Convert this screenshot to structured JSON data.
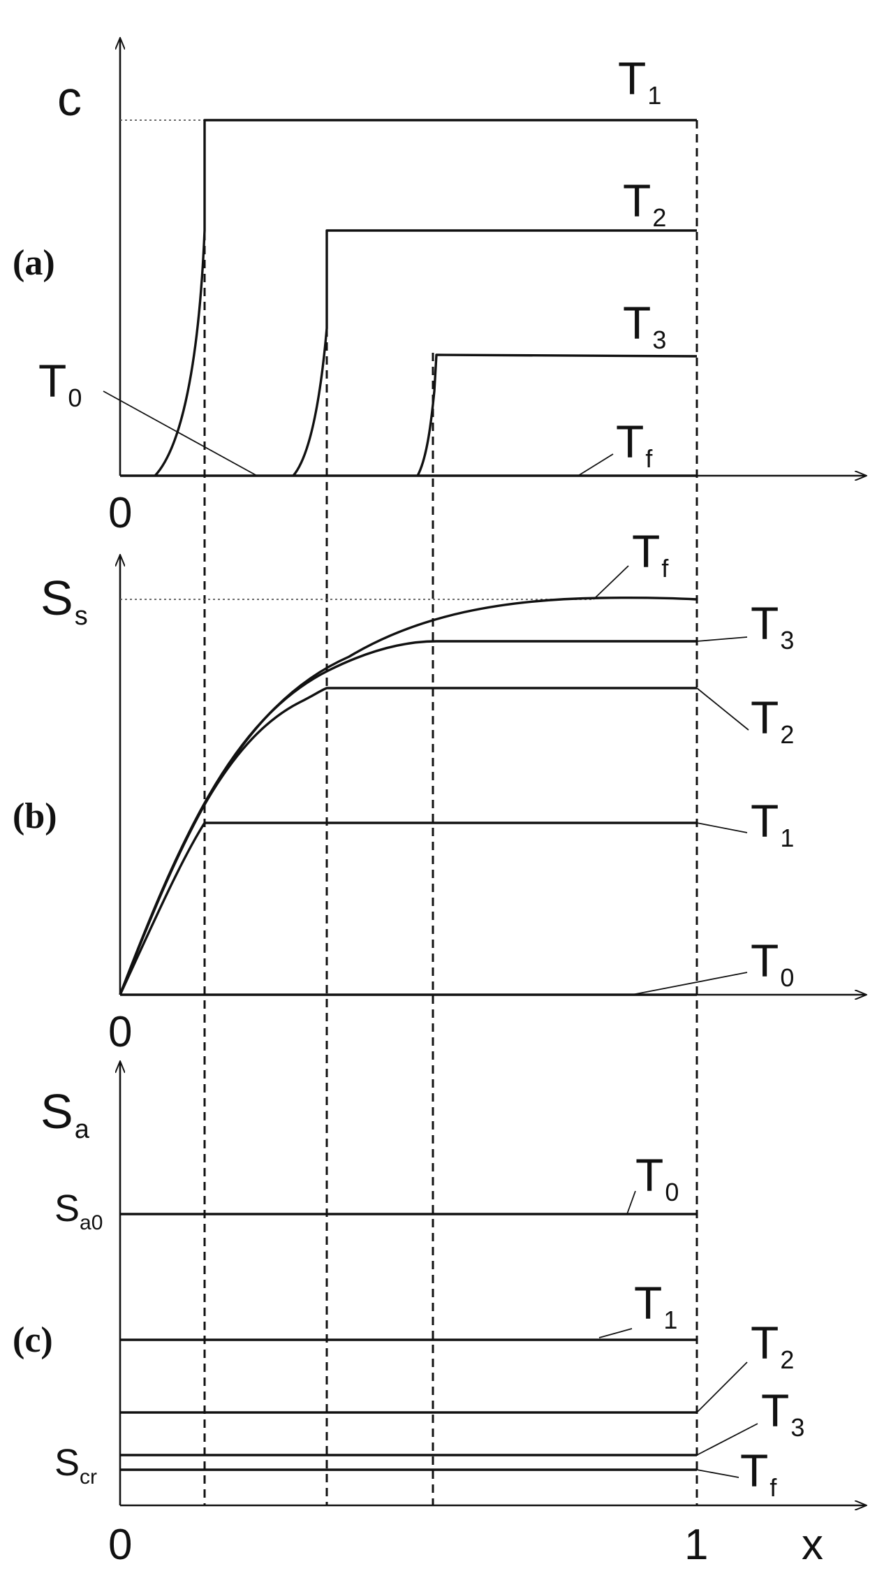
{
  "panels": {
    "a": {
      "label": "(a)",
      "y_label": "c",
      "origin": "0",
      "curves": {
        "T1": "T",
        "T1_sub": "1",
        "T2": "T",
        "T2_sub": "2",
        "T3": "T",
        "T3_sub": "3",
        "T0": "T",
        "T0_sub": "0",
        "Tf": "T",
        "Tf_sub": "f"
      }
    },
    "b": {
      "label": "(b)",
      "y_label": "S",
      "y_label_sub": "s",
      "origin": "0",
      "curves": {
        "Tf": "T",
        "Tf_sub": "f",
        "T3": "T",
        "T3_sub": "3",
        "T2": "T",
        "T2_sub": "2",
        "T1": "T",
        "T1_sub": "1",
        "T0": "T",
        "T0_sub": "0"
      }
    },
    "c": {
      "label": "(c)",
      "y_label": "S",
      "y_label_sub": "a",
      "tick_top": "S",
      "tick_top_sub": "a0",
      "tick_bottom": "S",
      "tick_bottom_sub": "cr",
      "origin": "0",
      "x_end": "1",
      "x_label": "x",
      "curves": {
        "T0": "T",
        "T0_sub": "0",
        "T1": "T",
        "T1_sub": "1",
        "T2": "T",
        "T2_sub": "2",
        "T3": "T",
        "T3_sub": "3",
        "Tf": "T",
        "Tf_sub": "f"
      }
    }
  }
}
